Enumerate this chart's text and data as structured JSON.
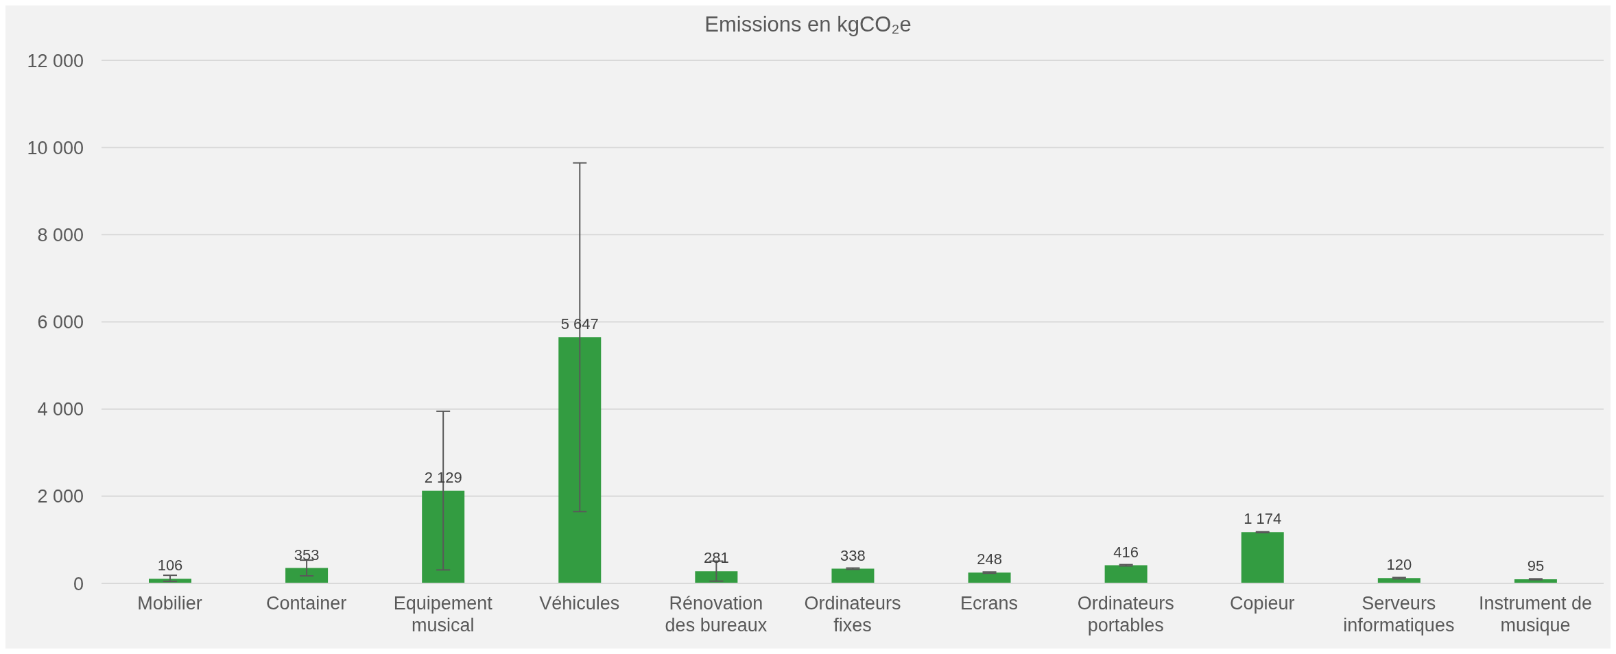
{
  "chart_data": {
    "type": "bar",
    "title": "Emissions en kgCO₂e",
    "categories": [
      "Mobilier",
      "Container",
      "Equipement musical",
      "Véhicules",
      "Rénovation des bureaux",
      "Ordinateurs fixes",
      "Ecrans",
      "Ordinateurs portables",
      "Copieur",
      "Serveurs informatiques",
      "Instrument de musique"
    ],
    "values": [
      106,
      353,
      2129,
      5647,
      281,
      338,
      248,
      416,
      1174,
      120,
      95
    ],
    "errors": [
      [
        60,
        80
      ],
      180,
      1820,
      4000,
      230,
      15,
      15,
      15,
      10,
      15,
      10
    ],
    "color": "#339c41",
    "ylim": [
      0,
      12000
    ],
    "yticks": [
      0,
      2000,
      4000,
      6000,
      8000,
      10000,
      12000
    ],
    "grid": "y",
    "data_labels": true
  }
}
